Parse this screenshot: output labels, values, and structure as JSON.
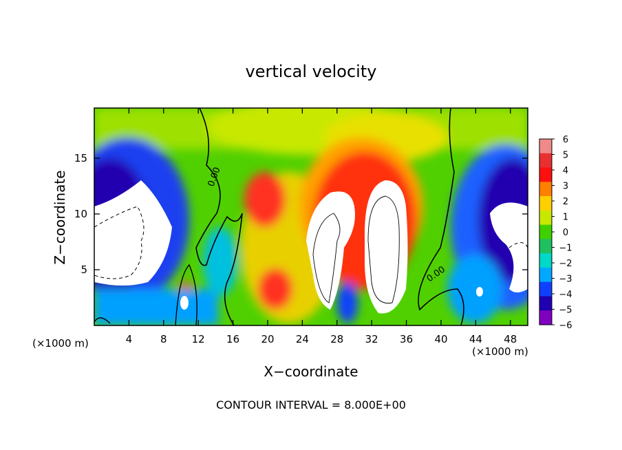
{
  "chart_data": {
    "type": "heatmap",
    "title": "vertical velocity",
    "xlabel": "X−coordinate",
    "ylabel": "Z−coordinate",
    "x_unit_left": "(×1000 m)",
    "x_unit_right": "(×1000 m)",
    "xlim": [
      0,
      50
    ],
    "ylim": [
      0,
      19.5
    ],
    "x_ticks": [
      "4",
      "8",
      "12",
      "16",
      "20",
      "24",
      "28",
      "32",
      "36",
      "40",
      "44",
      "48"
    ],
    "y_ticks": [
      "5",
      "10",
      "15"
    ],
    "colorbar": {
      "min": -6,
      "max": 6,
      "labels": [
        "6",
        "5",
        "4",
        "3",
        "2",
        "1",
        "0",
        "−1",
        "−2",
        "−3",
        "−4",
        "−5",
        "−6"
      ],
      "colors": [
        "#f08a8a",
        "#e83030",
        "#ff1010",
        "#ff8000",
        "#ffd000",
        "#c8e800",
        "#40d000",
        "#20c060",
        "#00d8c8",
        "#00a8ff",
        "#1040ff",
        "#2000b0",
        "#8000c0"
      ]
    },
    "contour_labels": [
      "0.00",
      "0.00"
    ],
    "footer": "CONTOUR INTERVAL = 8.000E+00"
  }
}
